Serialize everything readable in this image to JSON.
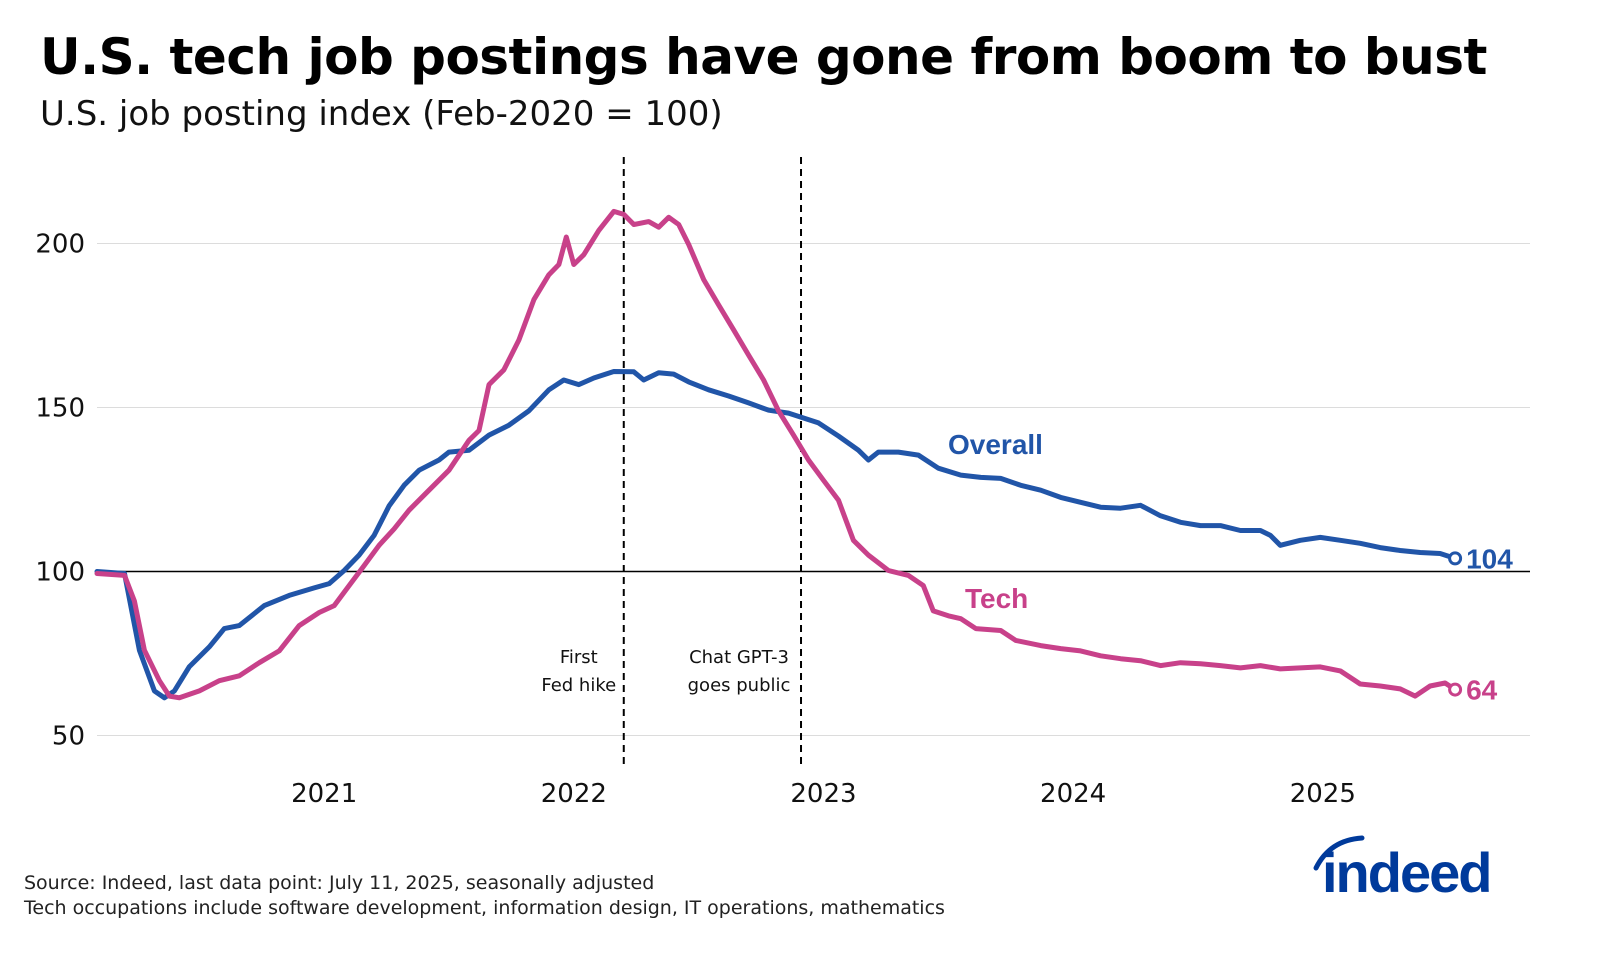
{
  "chart_data": {
    "type": "line",
    "title": "U.S. tech job postings have gone from boom to bust",
    "subtitle": "U.S. job posting index (Feb-2020 = 100)",
    "xlim": [
      2020.09,
      2025.83
    ],
    "ylim": [
      41,
      227
    ],
    "x_ticks": [
      2021,
      2022,
      2023,
      2024,
      2025
    ],
    "x_tick_labels": [
      "2021",
      "2022",
      "2023",
      "2024",
      "2025"
    ],
    "y_ticks": [
      50,
      100,
      150,
      200
    ],
    "y_tick_labels": [
      "50",
      "100",
      "150",
      "200"
    ],
    "grid": "horizontal",
    "baseline": 100,
    "annotations": [
      {
        "x": 2022.2,
        "lines": [
          "First",
          "Fed hike"
        ]
      },
      {
        "x": 2022.91,
        "lines": [
          "Chat GPT-3",
          "goes public"
        ]
      }
    ],
    "series": [
      {
        "name": "Overall",
        "color": "#2155A8",
        "end_label": "104",
        "points": [
          [
            2020.09,
            100
          ],
          [
            2020.2,
            99.4
          ],
          [
            2020.26,
            76
          ],
          [
            2020.32,
            63.6
          ],
          [
            2020.36,
            61.5
          ],
          [
            2020.4,
            63.6
          ],
          [
            2020.46,
            71
          ],
          [
            2020.54,
            77
          ],
          [
            2020.6,
            82.6
          ],
          [
            2020.66,
            83.5
          ],
          [
            2020.76,
            89.6
          ],
          [
            2020.86,
            92.7
          ],
          [
            2020.96,
            95
          ],
          [
            2021.02,
            96.3
          ],
          [
            2021.08,
            100.3
          ],
          [
            2021.14,
            105
          ],
          [
            2021.2,
            111
          ],
          [
            2021.26,
            120
          ],
          [
            2021.32,
            126.3
          ],
          [
            2021.38,
            130.9
          ],
          [
            2021.46,
            134
          ],
          [
            2021.5,
            136.4
          ],
          [
            2021.58,
            137
          ],
          [
            2021.66,
            141.6
          ],
          [
            2021.74,
            144.6
          ],
          [
            2021.82,
            149
          ],
          [
            2021.9,
            155.4
          ],
          [
            2021.96,
            158.4
          ],
          [
            2022.02,
            157
          ],
          [
            2022.08,
            159
          ],
          [
            2022.16,
            161
          ],
          [
            2022.24,
            160.9
          ],
          [
            2022.28,
            158.4
          ],
          [
            2022.34,
            160.6
          ],
          [
            2022.4,
            160.2
          ],
          [
            2022.46,
            157.8
          ],
          [
            2022.54,
            155.4
          ],
          [
            2022.62,
            153.5
          ],
          [
            2022.7,
            151.4
          ],
          [
            2022.78,
            149.2
          ],
          [
            2022.86,
            148.3
          ],
          [
            2022.92,
            146.8
          ],
          [
            2022.98,
            145.3
          ],
          [
            2023.06,
            141.3
          ],
          [
            2023.14,
            137
          ],
          [
            2023.18,
            134
          ],
          [
            2023.22,
            136.4
          ],
          [
            2023.3,
            136.4
          ],
          [
            2023.38,
            135.5
          ],
          [
            2023.46,
            131.5
          ],
          [
            2023.55,
            129.4
          ],
          [
            2023.63,
            128.7
          ],
          [
            2023.71,
            128.4
          ],
          [
            2023.79,
            126.3
          ],
          [
            2023.87,
            124.8
          ],
          [
            2023.95,
            122.6
          ],
          [
            2024.03,
            121.1
          ],
          [
            2024.11,
            119.6
          ],
          [
            2024.19,
            119.3
          ],
          [
            2024.27,
            120.2
          ],
          [
            2024.35,
            117
          ],
          [
            2024.43,
            115
          ],
          [
            2024.51,
            114
          ],
          [
            2024.59,
            114
          ],
          [
            2024.67,
            112.5
          ],
          [
            2024.75,
            112.5
          ],
          [
            2024.79,
            111
          ],
          [
            2024.83,
            108
          ],
          [
            2024.91,
            109.5
          ],
          [
            2024.99,
            110.4
          ],
          [
            2025.07,
            109.5
          ],
          [
            2025.15,
            108.6
          ],
          [
            2025.23,
            107.3
          ],
          [
            2025.31,
            106.4
          ],
          [
            2025.39,
            105.8
          ],
          [
            2025.47,
            105.5
          ],
          [
            2025.53,
            104
          ]
        ]
      },
      {
        "name": "Tech",
        "color": "#C8418A",
        "end_label": "64",
        "points": [
          [
            2020.09,
            99.4
          ],
          [
            2020.2,
            98.8
          ],
          [
            2020.24,
            91
          ],
          [
            2020.28,
            76
          ],
          [
            2020.34,
            66.7
          ],
          [
            2020.38,
            62
          ],
          [
            2020.42,
            61.5
          ],
          [
            2020.5,
            63.6
          ],
          [
            2020.58,
            66.7
          ],
          [
            2020.66,
            68.2
          ],
          [
            2020.74,
            72.2
          ],
          [
            2020.82,
            75.8
          ],
          [
            2020.9,
            83.5
          ],
          [
            2020.98,
            87.5
          ],
          [
            2021.04,
            89.6
          ],
          [
            2021.1,
            95.7
          ],
          [
            2021.16,
            101.8
          ],
          [
            2021.22,
            108
          ],
          [
            2021.28,
            113
          ],
          [
            2021.34,
            118.7
          ],
          [
            2021.42,
            124.8
          ],
          [
            2021.5,
            130.9
          ],
          [
            2021.58,
            140
          ],
          [
            2021.62,
            143
          ],
          [
            2021.66,
            157
          ],
          [
            2021.72,
            161.5
          ],
          [
            2021.78,
            170.6
          ],
          [
            2021.84,
            182.9
          ],
          [
            2021.9,
            190.5
          ],
          [
            2021.94,
            193.6
          ],
          [
            2021.97,
            202
          ],
          [
            2022.0,
            193.6
          ],
          [
            2022.04,
            196.6
          ],
          [
            2022.1,
            204
          ],
          [
            2022.16,
            209.8
          ],
          [
            2022.2,
            208.9
          ],
          [
            2022.24,
            205.8
          ],
          [
            2022.3,
            206.7
          ],
          [
            2022.34,
            205
          ],
          [
            2022.38,
            208
          ],
          [
            2022.42,
            205.8
          ],
          [
            2022.46,
            199.7
          ],
          [
            2022.52,
            189
          ],
          [
            2022.58,
            181.3
          ],
          [
            2022.64,
            173.7
          ],
          [
            2022.7,
            166
          ],
          [
            2022.76,
            158.4
          ],
          [
            2022.82,
            149
          ],
          [
            2022.88,
            141.6
          ],
          [
            2022.94,
            134
          ],
          [
            2023.0,
            127.8
          ],
          [
            2023.06,
            121.7
          ],
          [
            2023.12,
            109.5
          ],
          [
            2023.18,
            105
          ],
          [
            2023.26,
            100.3
          ],
          [
            2023.34,
            98.8
          ],
          [
            2023.4,
            95.7
          ],
          [
            2023.44,
            88
          ],
          [
            2023.5,
            86.5
          ],
          [
            2023.55,
            85.6
          ],
          [
            2023.61,
            82.6
          ],
          [
            2023.71,
            82
          ],
          [
            2023.77,
            79
          ],
          [
            2023.87,
            77.4
          ],
          [
            2023.95,
            76.5
          ],
          [
            2024.03,
            75.8
          ],
          [
            2024.11,
            74.3
          ],
          [
            2024.19,
            73.4
          ],
          [
            2024.27,
            72.8
          ],
          [
            2024.35,
            71.3
          ],
          [
            2024.43,
            72.2
          ],
          [
            2024.51,
            71.9
          ],
          [
            2024.59,
            71.3
          ],
          [
            2024.67,
            70.6
          ],
          [
            2024.75,
            71.3
          ],
          [
            2024.83,
            70.3
          ],
          [
            2024.91,
            70.6
          ],
          [
            2024.99,
            70.9
          ],
          [
            2025.07,
            69.7
          ],
          [
            2025.15,
            65.7
          ],
          [
            2025.23,
            65.1
          ],
          [
            2025.31,
            64.2
          ],
          [
            2025.37,
            62
          ],
          [
            2025.43,
            65.1
          ],
          [
            2025.49,
            66
          ],
          [
            2025.53,
            64
          ]
        ]
      }
    ]
  },
  "footer": {
    "source": "Source: Indeed, last data point: July 11, 2025, seasonally adjusted",
    "note": "Tech occupations include software development, information design, IT operations, mathematics"
  },
  "logo": {
    "text": "indeed",
    "color": "#003A9B"
  }
}
